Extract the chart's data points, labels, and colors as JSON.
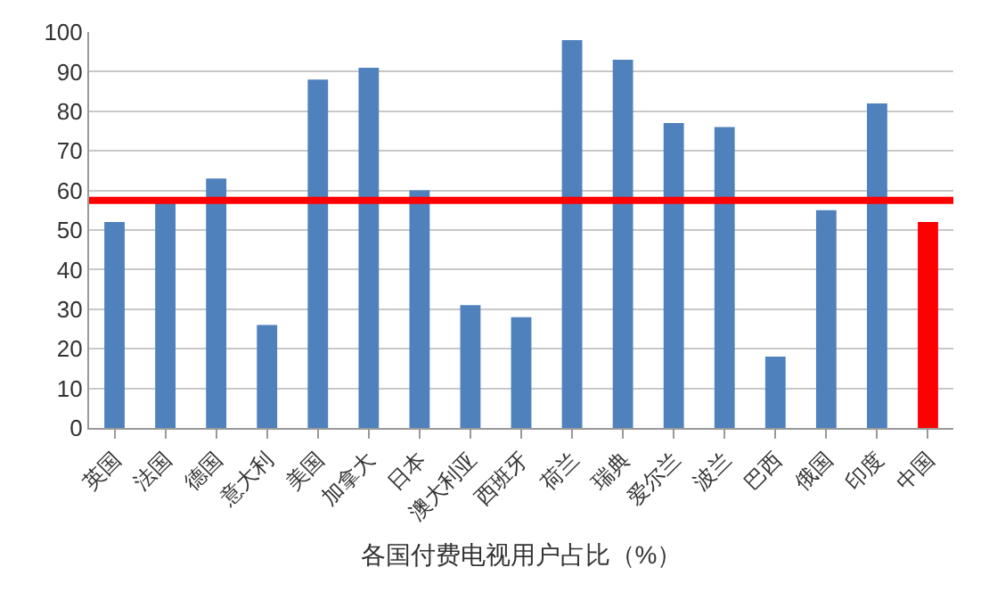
{
  "chart_data": {
    "type": "bar",
    "xlabel": "各国付费电视用户占比（%）",
    "categories": [
      "英国",
      "法国",
      "德国",
      "意大利",
      "美国",
      "加拿大",
      "日本",
      "澳大利亚",
      "西班牙",
      "荷兰",
      "瑞典",
      "爱尔兰",
      "波兰",
      "巴西",
      "俄国",
      "印度",
      "中国"
    ],
    "values": [
      52,
      57,
      63,
      26,
      88,
      91,
      60,
      31,
      28,
      98,
      93,
      77,
      76,
      18,
      55,
      82,
      52
    ],
    "colors": [
      "#4f81bd",
      "#4f81bd",
      "#4f81bd",
      "#4f81bd",
      "#4f81bd",
      "#4f81bd",
      "#4f81bd",
      "#4f81bd",
      "#4f81bd",
      "#4f81bd",
      "#4f81bd",
      "#4f81bd",
      "#4f81bd",
      "#4f81bd",
      "#4f81bd",
      "#4f81bd",
      "#ff0000"
    ],
    "ylim": [
      0,
      100
    ],
    "yticks": [
      0,
      10,
      20,
      30,
      40,
      50,
      60,
      70,
      80,
      90,
      100
    ],
    "grid": "y",
    "ref_lines": [
      {
        "axis": "y",
        "value": 57.5,
        "color": "#ff0000"
      }
    ]
  }
}
